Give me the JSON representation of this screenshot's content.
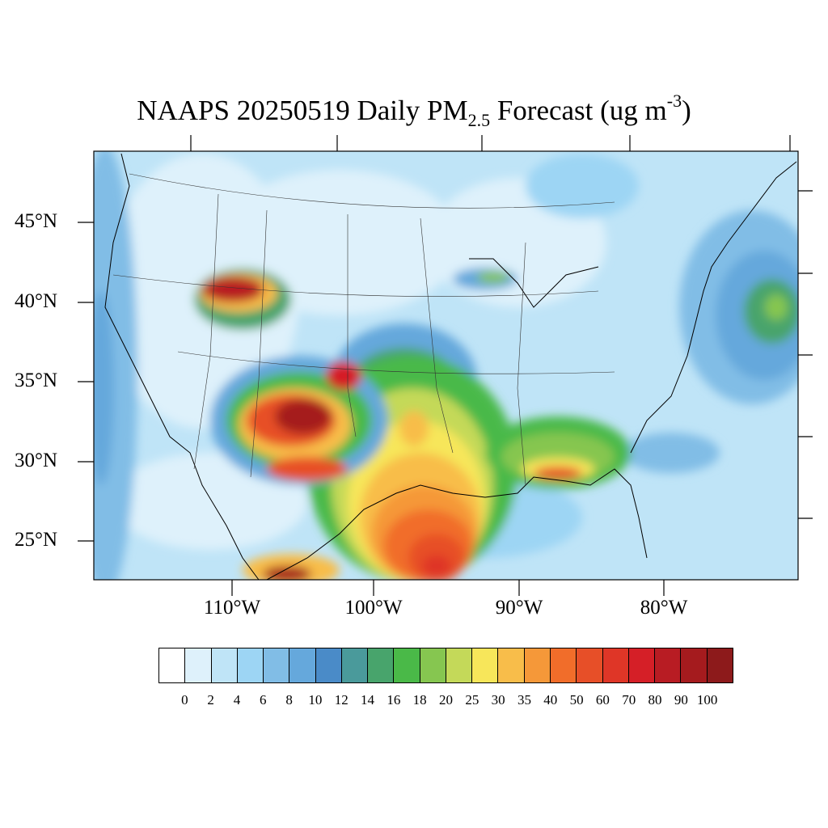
{
  "title": {
    "prefix": "NAAPS 20250519 Daily PM",
    "sub": "2.5",
    "suffix1": " Forecast (ug m",
    "sup": "-3",
    "suffix2": ")"
  },
  "lat_labels": [
    "45°N",
    "40°N",
    "35°N",
    "30°N",
    "25°N"
  ],
  "lon_labels": [
    "110°W",
    "100°W",
    "90°W",
    "80°W"
  ],
  "colorbar": {
    "labels": [
      "0",
      "2",
      "4",
      "6",
      "8",
      "10",
      "12",
      "14",
      "16",
      "18",
      "20",
      "25",
      "30",
      "35",
      "40",
      "50",
      "60",
      "70",
      "80",
      "90",
      "100"
    ],
    "colors": [
      "#ffffff",
      "#def1fb",
      "#bfe4f7",
      "#9dd5f4",
      "#81bde6",
      "#65a8dc",
      "#4a8bc8",
      "#4a9a9b",
      "#48a46c",
      "#4ab948",
      "#86c650",
      "#c4d959",
      "#f7e65a",
      "#f8bd4a",
      "#f59839",
      "#f16d2a",
      "#e74f28",
      "#df3627",
      "#d51f27",
      "#b81c23",
      "#a51b1e",
      "#8d1a1b"
    ]
  },
  "map": {
    "projection": "Lambert conformal, continental US",
    "background_level": "2–4 ug m-3",
    "plumes": [
      {
        "region": "southern Texas / Gulf coast",
        "max": "90"
      },
      {
        "region": "New Mexico / Colorado / Arizona",
        "max": "100"
      },
      {
        "region": "northern Utah / southern Wyoming",
        "max": "100"
      },
      {
        "region": "Gulf coast Louisiana / Alabama / Georgia",
        "max": "70"
      },
      {
        "region": "Lake Michigan",
        "max": "35"
      },
      {
        "region": "northern Mexico",
        "max": "100"
      }
    ]
  }
}
